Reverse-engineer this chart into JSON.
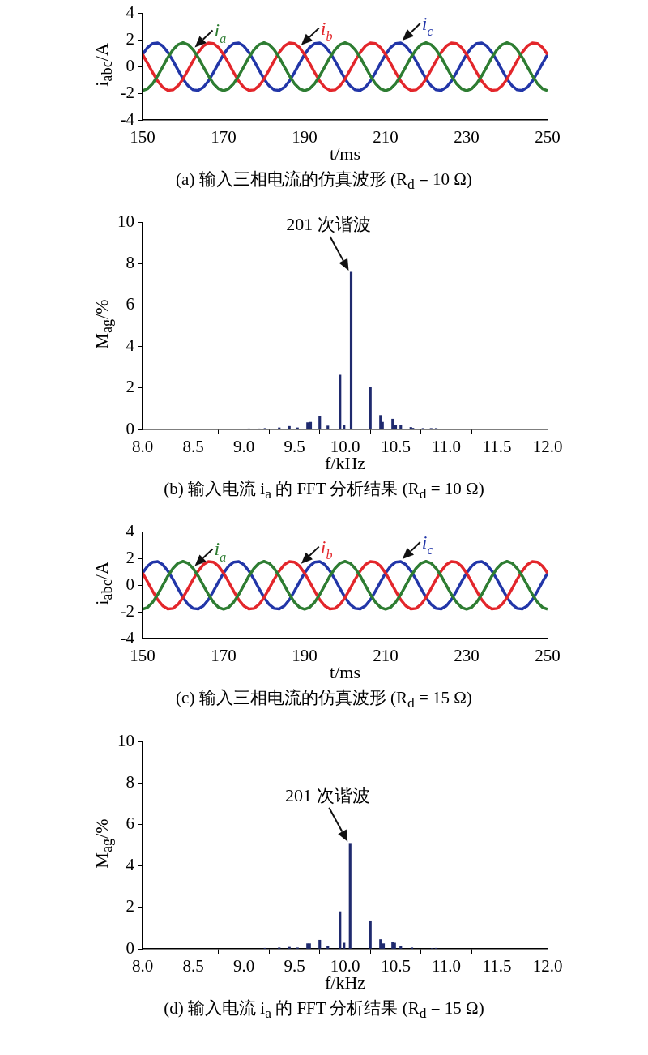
{
  "chart_data": [
    {
      "type": "line",
      "title": "(a) 输入三相电流的仿真波形 (R$_{d}$ = 10 Ω)",
      "xlabel": "t/ms",
      "ylabel": "i$_{abc}$/A",
      "marker": "none",
      "grid": false,
      "x": [
        150,
        151.25,
        152.5,
        153.75,
        155,
        156.25,
        157.5,
        158.75,
        160,
        161.25,
        162.5,
        163.75,
        165,
        166.25,
        167.5,
        168.75,
        170,
        171.25,
        172.5,
        173.75,
        175,
        176.25,
        177.5,
        178.75,
        180,
        181.25,
        182.5,
        183.75,
        185,
        186.25,
        187.5,
        188.75,
        190,
        191.25,
        192.5,
        193.75,
        195,
        196.25,
        197.5,
        198.75,
        200,
        201.25,
        202.5,
        203.75,
        205,
        206.25,
        207.5,
        208.75,
        210,
        211.25,
        212.5,
        213.75,
        215,
        216.25,
        217.5,
        218.75,
        220,
        221.25,
        222.5,
        223.75,
        225,
        226.25,
        227.5,
        228.75,
        230,
        231.25,
        232.5,
        233.75,
        235,
        236.25,
        237.5,
        238.75,
        240,
        241.25,
        242.5,
        243.75,
        245,
        246.25,
        247.5,
        248.75,
        250
      ],
      "series": [
        {
          "name": "i$_{a}$",
          "color": "#2e7d32",
          "values": [
            -1.8,
            -1.66,
            -1.27,
            -0.69,
            0,
            0.69,
            1.27,
            1.66,
            1.8,
            1.66,
            1.27,
            0.69,
            0,
            -0.69,
            -1.27,
            -1.66,
            -1.8,
            -1.66,
            -1.27,
            -0.69,
            0,
            0.69,
            1.27,
            1.66,
            1.8,
            1.66,
            1.27,
            0.69,
            0,
            -0.69,
            -1.27,
            -1.66,
            -1.8,
            -1.66,
            -1.27,
            -0.69,
            0,
            0.69,
            1.27,
            1.66,
            1.8,
            1.66,
            1.27,
            0.69,
            0,
            -0.69,
            -1.27,
            -1.66,
            -1.8,
            -1.66,
            -1.27,
            -0.69,
            0,
            0.69,
            1.27,
            1.66,
            1.8,
            1.66,
            1.27,
            0.69,
            0,
            -0.69,
            -1.27,
            -1.66,
            -1.8,
            -1.66,
            -1.27,
            -0.69,
            0,
            0.69,
            1.27,
            1.66,
            1.8,
            1.66,
            1.27,
            0.69,
            0,
            -0.69,
            -1.27,
            -1.66,
            -1.8
          ]
        },
        {
          "name": "i$_{b}$",
          "color": "#e3262b",
          "values": [
            0.92,
            0.25,
            -0.45,
            -1.08,
            -1.55,
            -1.78,
            -1.74,
            -1.44,
            -0.92,
            -0.25,
            0.45,
            1.08,
            1.55,
            1.78,
            1.74,
            1.44,
            0.92,
            0.25,
            -0.45,
            -1.08,
            -1.55,
            -1.78,
            -1.74,
            -1.44,
            -0.92,
            -0.25,
            0.45,
            1.08,
            1.55,
            1.78,
            1.74,
            1.44,
            0.92,
            0.25,
            -0.45,
            -1.08,
            -1.55,
            -1.78,
            -1.74,
            -1.44,
            -0.92,
            -0.25,
            0.45,
            1.08,
            1.55,
            1.78,
            1.74,
            1.44,
            0.92,
            0.25,
            -0.45,
            -1.08,
            -1.55,
            -1.78,
            -1.74,
            -1.44,
            -0.92,
            -0.25,
            0.45,
            1.08,
            1.55,
            1.78,
            1.74,
            1.44,
            0.92,
            0.25,
            -0.45,
            -1.08,
            -1.55,
            -1.78,
            -1.74,
            -1.44,
            -0.92,
            -0.25,
            0.45,
            1.08,
            1.55,
            1.78,
            1.74,
            1.44,
            0.92
          ]
        },
        {
          "name": "i$_{c}$",
          "color": "#2236a8",
          "values": [
            0.92,
            1.44,
            1.74,
            1.78,
            1.55,
            1.08,
            0.45,
            -0.25,
            -0.92,
            -1.44,
            -1.74,
            -1.78,
            -1.55,
            -1.08,
            -0.45,
            0.25,
            0.92,
            1.44,
            1.74,
            1.78,
            1.55,
            1.08,
            0.45,
            -0.25,
            -0.92,
            -1.44,
            -1.74,
            -1.78,
            -1.55,
            -1.08,
            -0.45,
            0.25,
            0.92,
            1.44,
            1.74,
            1.78,
            1.55,
            1.08,
            0.45,
            -0.25,
            -0.92,
            -1.44,
            -1.74,
            -1.78,
            -1.55,
            -1.08,
            -0.45,
            0.25,
            0.92,
            1.44,
            1.74,
            1.78,
            1.55,
            1.08,
            0.45,
            -0.25,
            -0.92,
            -1.44,
            -1.74,
            -1.78,
            -1.55,
            -1.08,
            -0.45,
            0.25,
            0.92,
            1.44,
            1.74,
            1.78,
            1.55,
            1.08,
            0.45,
            -0.25,
            -0.92,
            -1.44,
            -1.74,
            -1.78,
            -1.55,
            -1.08,
            -0.45,
            0.25,
            0.92
          ]
        }
      ],
      "xlim": [
        150,
        250
      ],
      "xticks": [
        150,
        170,
        190,
        210,
        230,
        250
      ],
      "ylim": [
        -4,
        4
      ],
      "yticks": [
        -4,
        -2,
        0,
        2,
        4
      ]
    },
    {
      "type": "bar",
      "title": "(b) 输入电流 i$_{a}$ 的 FFT 分析结果 (R$_{d}$ = 10 Ω)",
      "xlabel": "f/kHz",
      "ylabel": "M$_{ag}$/%",
      "grid": false,
      "color": "#1f2a6e",
      "x": [
        9.05,
        9.15,
        9.21,
        9.35,
        9.45,
        9.53,
        9.63,
        9.66,
        9.75,
        9.83,
        9.95,
        9.99,
        10.06,
        10.25,
        10.35,
        10.37,
        10.47,
        10.5,
        10.55,
        10.65,
        10.67,
        10.77,
        10.85,
        10.9
      ],
      "values": [
        0.03,
        0.03,
        0.05,
        0.08,
        0.15,
        0.08,
        0.33,
        0.35,
        0.62,
        0.17,
        2.63,
        0.2,
        7.6,
        2.03,
        0.68,
        0.35,
        0.5,
        0.22,
        0.22,
        0.1,
        0.06,
        0.05,
        0.05,
        0.05
      ],
      "annotations": [
        {
          "text": "201 次谐波",
          "x": 10.06,
          "y": 7.6
        }
      ],
      "xlim": [
        8,
        12
      ],
      "xticks": [
        {
          "value": 8,
          "label": "8.0"
        },
        {
          "value": 8.5,
          "label": "8.5"
        },
        {
          "value": 9,
          "label": "9.0"
        },
        {
          "value": 9.5,
          "label": "9.5"
        },
        {
          "value": 10,
          "label": "10.0"
        },
        {
          "value": 10.5,
          "label": "10.5"
        },
        {
          "value": 11,
          "label": "11.0"
        },
        {
          "value": 11.5,
          "label": "11.5"
        },
        {
          "value": 12,
          "label": "12.0"
        }
      ],
      "ylim": [
        0,
        10
      ],
      "yticks": [
        0,
        2,
        4,
        6,
        8,
        10
      ]
    },
    {
      "type": "line",
      "title": "(c) 输入三相电流的仿真波形 (R$_{d}$ = 15 Ω)",
      "xlabel": "t/ms",
      "ylabel": "i$_{abc}$/A",
      "marker": "none",
      "grid": false,
      "x": [
        150,
        151.25,
        152.5,
        153.75,
        155,
        156.25,
        157.5,
        158.75,
        160,
        161.25,
        162.5,
        163.75,
        165,
        166.25,
        167.5,
        168.75,
        170,
        171.25,
        172.5,
        173.75,
        175,
        176.25,
        177.5,
        178.75,
        180,
        181.25,
        182.5,
        183.75,
        185,
        186.25,
        187.5,
        188.75,
        190,
        191.25,
        192.5,
        193.75,
        195,
        196.25,
        197.5,
        198.75,
        200,
        201.25,
        202.5,
        203.75,
        205,
        206.25,
        207.5,
        208.75,
        210,
        211.25,
        212.5,
        213.75,
        215,
        216.25,
        217.5,
        218.75,
        220,
        221.25,
        222.5,
        223.75,
        225,
        226.25,
        227.5,
        228.75,
        230,
        231.25,
        232.5,
        233.75,
        235,
        236.25,
        237.5,
        238.75,
        240,
        241.25,
        242.5,
        243.75,
        245,
        246.25,
        247.5,
        248.75,
        250
      ],
      "series": [
        {
          "name": "i$_{a}$",
          "color": "#2e7d32",
          "values": [
            -1.8,
            -1.66,
            -1.27,
            -0.69,
            0,
            0.69,
            1.27,
            1.66,
            1.8,
            1.66,
            1.27,
            0.69,
            0,
            -0.69,
            -1.27,
            -1.66,
            -1.8,
            -1.66,
            -1.27,
            -0.69,
            0,
            0.69,
            1.27,
            1.66,
            1.8,
            1.66,
            1.27,
            0.69,
            0,
            -0.69,
            -1.27,
            -1.66,
            -1.8,
            -1.66,
            -1.27,
            -0.69,
            0,
            0.69,
            1.27,
            1.66,
            1.8,
            1.66,
            1.27,
            0.69,
            0,
            -0.69,
            -1.27,
            -1.66,
            -1.8,
            -1.66,
            -1.27,
            -0.69,
            0,
            0.69,
            1.27,
            1.66,
            1.8,
            1.66,
            1.27,
            0.69,
            0,
            -0.69,
            -1.27,
            -1.66,
            -1.8,
            -1.66,
            -1.27,
            -0.69,
            0,
            0.69,
            1.27,
            1.66,
            1.8,
            1.66,
            1.27,
            0.69,
            0,
            -0.69,
            -1.27,
            -1.66,
            -1.8
          ]
        },
        {
          "name": "i$_{b}$",
          "color": "#e3262b",
          "values": [
            0.92,
            0.25,
            -0.45,
            -1.08,
            -1.55,
            -1.78,
            -1.74,
            -1.44,
            -0.92,
            -0.25,
            0.45,
            1.08,
            1.55,
            1.78,
            1.74,
            1.44,
            0.92,
            0.25,
            -0.45,
            -1.08,
            -1.55,
            -1.78,
            -1.74,
            -1.44,
            -0.92,
            -0.25,
            0.45,
            1.08,
            1.55,
            1.78,
            1.74,
            1.44,
            0.92,
            0.25,
            -0.45,
            -1.08,
            -1.55,
            -1.78,
            -1.74,
            -1.44,
            -0.92,
            -0.25,
            0.45,
            1.08,
            1.55,
            1.78,
            1.74,
            1.44,
            0.92,
            0.25,
            -0.45,
            -1.08,
            -1.55,
            -1.78,
            -1.74,
            -1.44,
            -0.92,
            -0.25,
            0.45,
            1.08,
            1.55,
            1.78,
            1.74,
            1.44,
            0.92,
            0.25,
            -0.45,
            -1.08,
            -1.55,
            -1.78,
            -1.74,
            -1.44,
            -0.92,
            -0.25,
            0.45,
            1.08,
            1.55,
            1.78,
            1.74,
            1.44,
            0.92
          ]
        },
        {
          "name": "i$_{c}$",
          "color": "#2236a8",
          "values": [
            0.92,
            1.44,
            1.74,
            1.78,
            1.55,
            1.08,
            0.45,
            -0.25,
            -0.92,
            -1.44,
            -1.74,
            -1.78,
            -1.55,
            -1.08,
            -0.45,
            0.25,
            0.92,
            1.44,
            1.74,
            1.78,
            1.55,
            1.08,
            0.45,
            -0.25,
            -0.92,
            -1.44,
            -1.74,
            -1.78,
            -1.55,
            -1.08,
            -0.45,
            0.25,
            0.92,
            1.44,
            1.74,
            1.78,
            1.55,
            1.08,
            0.45,
            -0.25,
            -0.92,
            -1.44,
            -1.74,
            -1.78,
            -1.55,
            -1.08,
            -0.45,
            0.25,
            0.92,
            1.44,
            1.74,
            1.78,
            1.55,
            1.08,
            0.45,
            -0.25,
            -0.92,
            -1.44,
            -1.74,
            -1.78,
            -1.55,
            -1.08,
            -0.45,
            0.25,
            0.92,
            1.44,
            1.74,
            1.78,
            1.55,
            1.08,
            0.45,
            -0.25,
            -0.92,
            -1.44,
            -1.74,
            -1.78,
            -1.55,
            -1.08,
            -0.45,
            0.25,
            0.92
          ]
        }
      ],
      "xlim": [
        150,
        250
      ],
      "xticks": [
        150,
        170,
        190,
        210,
        230,
        250
      ],
      "ylim": [
        -4,
        4
      ],
      "yticks": [
        -4,
        -2,
        0,
        2,
        4
      ]
    },
    {
      "type": "bar",
      "title": "(d) 输入电流 i$_{a}$ 的 FFT 分析结果 (R$_{d}$ = 15 Ω)",
      "xlabel": "f/kHz",
      "ylabel": "M$_{ag}$/%",
      "grid": false,
      "color": "#1f2a6e",
      "x": [
        9.21,
        9.35,
        9.45,
        9.53,
        9.63,
        9.65,
        9.75,
        9.83,
        9.95,
        9.99,
        10.05,
        10.25,
        10.35,
        10.38,
        10.47,
        10.49,
        10.55,
        10.66,
        10.86,
        10.9
      ],
      "values": [
        0.03,
        0.05,
        0.08,
        0.05,
        0.25,
        0.25,
        0.42,
        0.13,
        1.8,
        0.28,
        5.1,
        1.32,
        0.45,
        0.25,
        0.3,
        0.28,
        0.12,
        0.05,
        0.02,
        0.03
      ],
      "annotations": [
        {
          "text": "201 次谐波",
          "x": 10.05,
          "y": 5.1
        }
      ],
      "xlim": [
        8,
        12
      ],
      "xticks": [
        {
          "value": 8,
          "label": "8.0"
        },
        {
          "value": 8.5,
          "label": "8.5"
        },
        {
          "value": 9,
          "label": "9.0"
        },
        {
          "value": 9.5,
          "label": "9.5"
        },
        {
          "value": 10,
          "label": "10.0"
        },
        {
          "value": 10.5,
          "label": "10.5"
        },
        {
          "value": 11,
          "label": "11.0"
        },
        {
          "value": 11.5,
          "label": "11.5"
        },
        {
          "value": 12,
          "label": "12.0"
        }
      ],
      "ylim": [
        0,
        10
      ],
      "yticks": [
        0,
        2,
        4,
        6,
        8,
        10
      ]
    }
  ]
}
